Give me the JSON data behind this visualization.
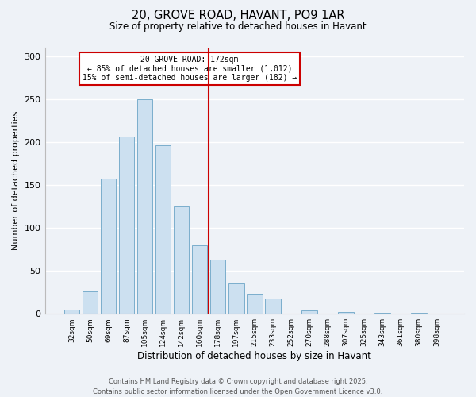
{
  "title": "20, GROVE ROAD, HAVANT, PO9 1AR",
  "subtitle": "Size of property relative to detached houses in Havant",
  "xlabel": "Distribution of detached houses by size in Havant",
  "ylabel": "Number of detached properties",
  "bar_labels": [
    "32sqm",
    "50sqm",
    "69sqm",
    "87sqm",
    "105sqm",
    "124sqm",
    "142sqm",
    "160sqm",
    "178sqm",
    "197sqm",
    "215sqm",
    "233sqm",
    "252sqm",
    "270sqm",
    "288sqm",
    "307sqm",
    "325sqm",
    "343sqm",
    "361sqm",
    "380sqm",
    "398sqm"
  ],
  "bar_values": [
    5,
    26,
    157,
    206,
    250,
    196,
    125,
    80,
    63,
    35,
    23,
    18,
    0,
    4,
    0,
    2,
    0,
    1,
    0,
    1,
    0
  ],
  "bar_color": "#cce0f0",
  "bar_edge_color": "#7aaecc",
  "vline_color": "#cc0000",
  "ylim": [
    0,
    310
  ],
  "yticks": [
    0,
    50,
    100,
    150,
    200,
    250,
    300
  ],
  "annotation_title": "20 GROVE ROAD: 172sqm",
  "annotation_line1": "← 85% of detached houses are smaller (1,012)",
  "annotation_line2": "15% of semi-detached houses are larger (182) →",
  "annotation_box_color": "#cc0000",
  "footer_line1": "Contains HM Land Registry data © Crown copyright and database right 2025.",
  "footer_line2": "Contains public sector information licensed under the Open Government Licence v3.0.",
  "background_color": "#eef2f7",
  "grid_color": "#ffffff"
}
